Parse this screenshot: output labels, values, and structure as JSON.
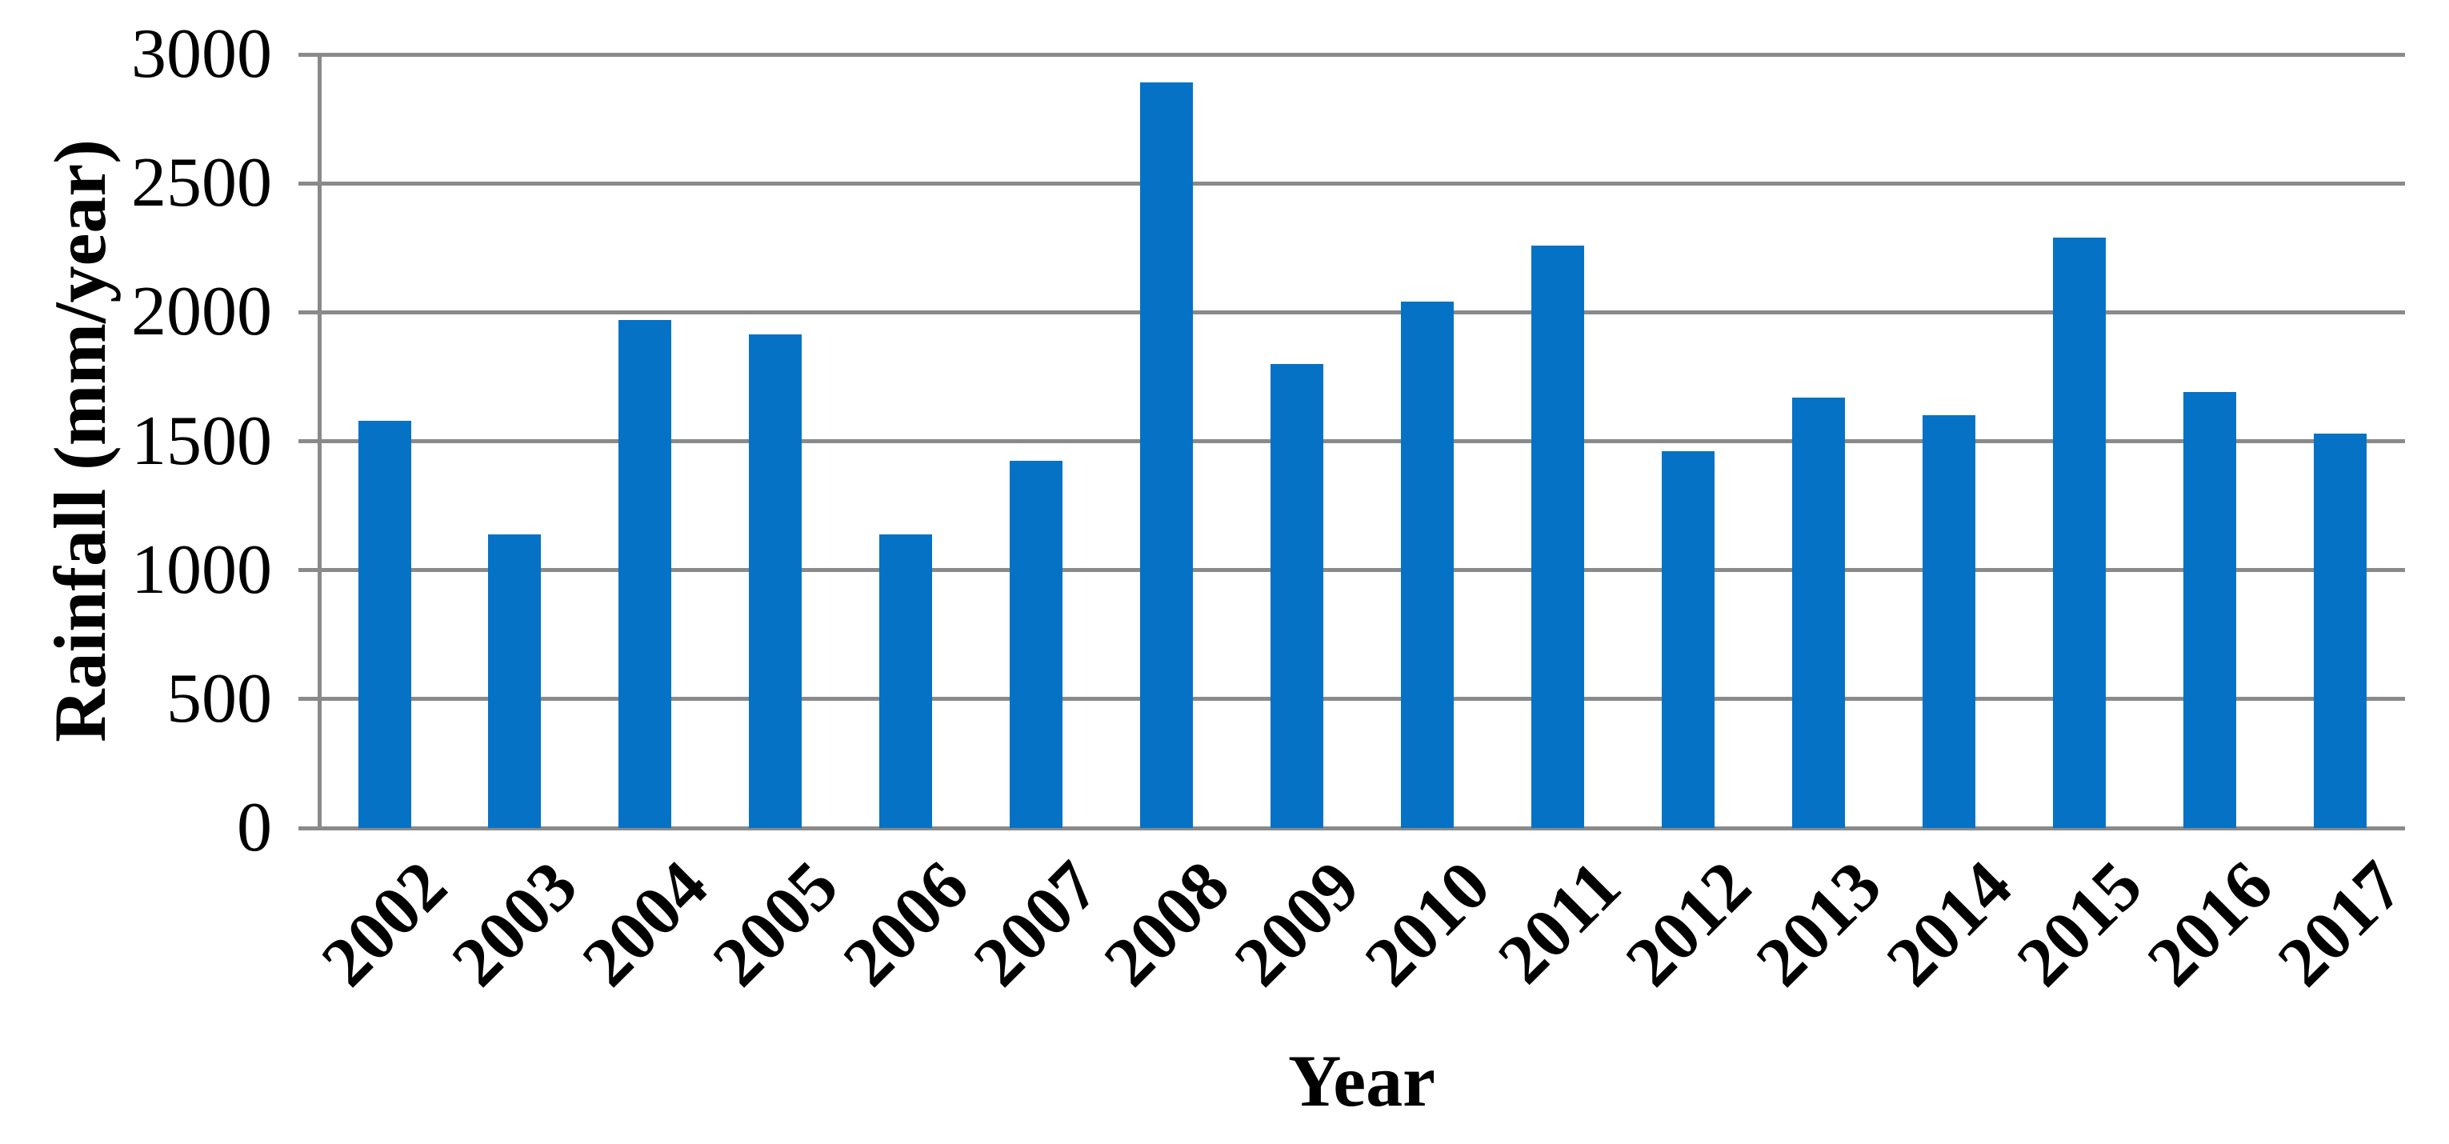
{
  "chart_data": {
    "type": "bar",
    "title": "",
    "xlabel": "Year",
    "ylabel": "Rainfall (mm/year)",
    "categories": [
      "2002",
      "2003",
      "2004",
      "2005",
      "2006",
      "2007",
      "2008",
      "2009",
      "2010",
      "2011",
      "2012",
      "2013",
      "2014",
      "2015",
      "2016",
      "2017"
    ],
    "values": [
      1580,
      1140,
      1970,
      1915,
      1140,
      1425,
      2890,
      1800,
      2040,
      2260,
      1460,
      1670,
      1600,
      2290,
      1690,
      1530
    ],
    "series_name": "Rainfall (mm/year)",
    "ylim": [
      0,
      3000
    ],
    "ytick_interval": 500,
    "yticks": [
      "0",
      "500",
      "1000",
      "1500",
      "2000",
      "2500",
      "3000"
    ],
    "grid": "horizontal-major",
    "legend": "none",
    "bar_color": "#0572C6",
    "axis_color": "#8A8A8A",
    "text_color": "#000000",
    "background_color": "#FFFFFF"
  }
}
